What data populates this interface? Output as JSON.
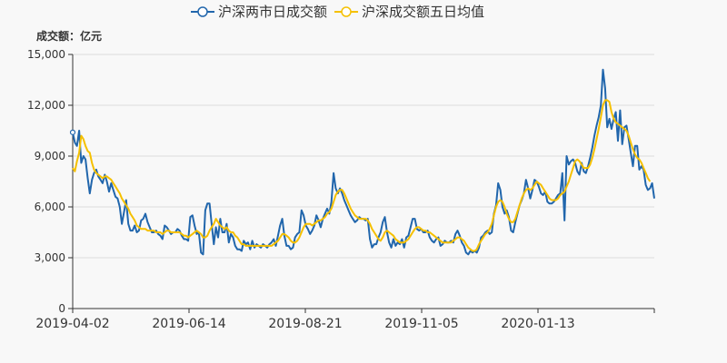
{
  "legend": {
    "series1": "沪深两市日成交额",
    "series2": "沪深成交额五日均值"
  },
  "colors": {
    "series1": "#2166ac",
    "series2": "#f5c000",
    "axis": "#333333",
    "grid": "#dddddd"
  },
  "chart_data": {
    "type": "line",
    "ylabel": "成交额：亿元",
    "ylim": [
      0,
      15000
    ],
    "yticks": [
      "0",
      "3,000",
      "6,000",
      "9,000",
      "12,000",
      "15,000"
    ],
    "xticks": [
      "2019-04-02",
      "2019-06-14",
      "2019-08-21",
      "2019-11-05",
      "2020-01-13"
    ],
    "legend_position": "top",
    "grid": "horizontal",
    "series": [
      {
        "name": "沪深两市日成交额",
        "values": [
          10400,
          9800,
          9600,
          10500,
          8600,
          9000,
          8800,
          7700,
          6800,
          7600,
          8000,
          8200,
          7800,
          7600,
          7400,
          7900,
          7500,
          6900,
          7400,
          7000,
          6600,
          6500,
          6000,
          5000,
          5700,
          6400,
          5000,
          4600,
          4600,
          4900,
          4500,
          4600,
          5200,
          5300,
          5600,
          5100,
          4800,
          4500,
          4500,
          4600,
          4400,
          4300,
          4100,
          4900,
          4800,
          4600,
          4400,
          4500,
          4500,
          4700,
          4600,
          4300,
          4100,
          4100,
          4000,
          5400,
          5500,
          4900,
          4400,
          4500,
          3300,
          3200,
          5800,
          6200,
          6200,
          5000,
          3800,
          4800,
          4200,
          5300,
          4500,
          4500,
          5000,
          3900,
          4400,
          4200,
          3700,
          3500,
          3500,
          3400,
          4000,
          3800,
          3900,
          3500,
          4000,
          3600,
          3800,
          3700,
          3600,
          3800,
          3700,
          3600,
          3800,
          3900,
          4100,
          3700,
          4300,
          4900,
          5300,
          4300,
          3700,
          3700,
          3500,
          3600,
          4200,
          4400,
          4500,
          5800,
          5500,
          4900,
          4700,
          4400,
          4600,
          4900,
          5500,
          5200,
          4800,
          5300,
          5600,
          5900,
          5600,
          6300,
          8000,
          7100,
          6800,
          7100,
          6800,
          6400,
          6100,
          5800,
          5500,
          5300,
          5100,
          5200,
          5400,
          5300,
          5300,
          5200,
          5300,
          4100,
          3600,
          3800,
          3800,
          4200,
          4500,
          5100,
          5400,
          4500,
          3900,
          3600,
          4100,
          3700,
          3900,
          3800,
          4100,
          3600,
          4200,
          4300,
          4800,
          5300,
          5300,
          4700,
          4600,
          4700,
          4500,
          4500,
          4600,
          4200,
          4000,
          3900,
          4100,
          4200,
          3700,
          3800,
          4000,
          3900,
          3900,
          4000,
          3900,
          4400,
          4600,
          4300,
          3900,
          3700,
          3300,
          3200,
          3400,
          3300,
          3400,
          3300,
          3600,
          4200,
          4300,
          4500,
          4600,
          4400,
          4500,
          5600,
          6100,
          7400,
          7000,
          6000,
          5600,
          5800,
          5400,
          4600,
          4500,
          5100,
          5600,
          6100,
          6400,
          6800,
          7600,
          7100,
          6500,
          7000,
          7600,
          7500,
          7200,
          6800,
          6700,
          6900,
          6300,
          6200,
          6200,
          6300,
          6500,
          6700,
          6800,
          8000,
          5200,
          9000,
          8500,
          8700,
          8800,
          8600,
          8100,
          7900,
          8600,
          8100,
          8000,
          8400,
          8900,
          9500,
          10200,
          10800,
          11300,
          12000,
          14100,
          13000,
          10700,
          11200,
          10600,
          11200,
          11600,
          9900,
          11700,
          9700,
          10700,
          10800,
          10000,
          9200,
          8400,
          9600,
          9600,
          8200,
          8400,
          8200,
          7300,
          7000,
          7100,
          7400,
          6500
        ]
      },
      {
        "name": "沪深成交额五日均值",
        "values": [
          8300,
          8100,
          8700,
          9200,
          10200,
          10000,
          9600,
          9300,
          9200,
          8600,
          8200,
          8000,
          7900,
          7800,
          7700,
          7800,
          7800,
          7700,
          7600,
          7400,
          7200,
          7000,
          6800,
          6500,
          6300,
          6100,
          5900,
          5600,
          5400,
          5200,
          4900,
          4800,
          4700,
          4700,
          4700,
          4600,
          4600,
          4600,
          4600,
          4500,
          4500,
          4500,
          4400,
          4500,
          4600,
          4600,
          4500,
          4500,
          4500,
          4500,
          4500,
          4400,
          4300,
          4300,
          4200,
          4300,
          4400,
          4500,
          4600,
          4500,
          4400,
          4200,
          4200,
          4300,
          4600,
          4800,
          5000,
          5300,
          5100,
          4900,
          4800,
          4700,
          4800,
          4600,
          4500,
          4500,
          4300,
          4200,
          4000,
          3800,
          3800,
          3700,
          3700,
          3700,
          3700,
          3700,
          3700,
          3700,
          3700,
          3700,
          3700,
          3700,
          3700,
          3700,
          3800,
          3900,
          4000,
          4200,
          4400,
          4400,
          4300,
          4200,
          4000,
          3900,
          3900,
          4000,
          4200,
          4500,
          4800,
          5000,
          5000,
          5000,
          4900,
          5000,
          5100,
          5200,
          5200,
          5300,
          5400,
          5600,
          5700,
          5900,
          6300,
          6700,
          6900,
          7000,
          7000,
          6800,
          6500,
          6200,
          5900,
          5700,
          5500,
          5400,
          5300,
          5300,
          5300,
          5300,
          5200,
          5000,
          4700,
          4500,
          4300,
          4100,
          4000,
          4200,
          4500,
          4600,
          4500,
          4400,
          4300,
          4100,
          4000,
          3900,
          3900,
          3900,
          4000,
          4100,
          4300,
          4500,
          4700,
          4800,
          4800,
          4700,
          4600,
          4600,
          4500,
          4500,
          4400,
          4300,
          4200,
          4100,
          4000,
          3900,
          3900,
          3900,
          3900,
          3900,
          4000,
          4100,
          4200,
          4200,
          4100,
          4000,
          3800,
          3600,
          3500,
          3400,
          3400,
          3500,
          3800,
          4000,
          4200,
          4400,
          4500,
          4700,
          5000,
          5500,
          6000,
          6300,
          6400,
          6300,
          6000,
          5600,
          5300,
          5100,
          5100,
          5300,
          5700,
          6100,
          6500,
          6800,
          7000,
          7100,
          7000,
          7100,
          7300,
          7500,
          7400,
          7300,
          7100,
          6900,
          6700,
          6500,
          6400,
          6400,
          6400,
          6500,
          6700,
          6800,
          6900,
          7200,
          7500,
          7900,
          8300,
          8700,
          8800,
          8700,
          8500,
          8300,
          8300,
          8300,
          8500,
          8900,
          9400,
          10000,
          10600,
          11300,
          12000,
          12300,
          12300,
          12200,
          11600,
          11200,
          11000,
          10900,
          10800,
          10700,
          10600,
          10500,
          10200,
          9800,
          9400,
          9100,
          8900,
          8800,
          8600,
          8300,
          8000,
          7700,
          7500
        ]
      }
    ]
  }
}
